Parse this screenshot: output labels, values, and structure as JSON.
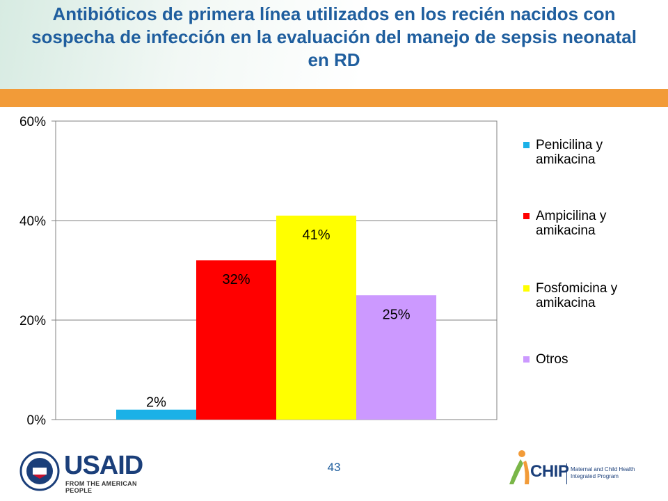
{
  "title": "Antibióticos de primera línea utilizados en los recién nacidos con sospecha de infección en la evaluación del manejo de sepsis neonatal en RD",
  "page_number": "43",
  "logos": {
    "usaid_name": "USAID",
    "usaid_tagline": "FROM THE AMERICAN PEOPLE",
    "chip_name": "CHIP",
    "chip_tagline": "Maternal and Child Health Integrated Program"
  },
  "chart_data": {
    "type": "bar",
    "categories": [
      "Penicilina y amikacina",
      "Ampicilina y amikacina",
      "Fosfomicina y amikacina",
      "Otros"
    ],
    "values": [
      2,
      32,
      41,
      25
    ],
    "data_labels": [
      "2%",
      "32%",
      "41%",
      "25%"
    ],
    "colors": [
      "#1bb1e7",
      "#ff0000",
      "#ffff00",
      "#cc99ff"
    ],
    "ylim": [
      0,
      60
    ],
    "yticks": [
      0,
      20,
      40,
      60
    ],
    "ytick_labels": [
      "0%",
      "20%",
      "40%",
      "60%"
    ],
    "grid": true,
    "legend_position": "right",
    "legend": [
      {
        "line1": "Penicilina y",
        "line2": "amikacina"
      },
      {
        "line1": "Ampicilina y",
        "line2": "amikacina"
      },
      {
        "line1": "Fosfomicina y",
        "line2": "amikacina"
      },
      {
        "line1": "Otros",
        "line2": ""
      }
    ]
  }
}
